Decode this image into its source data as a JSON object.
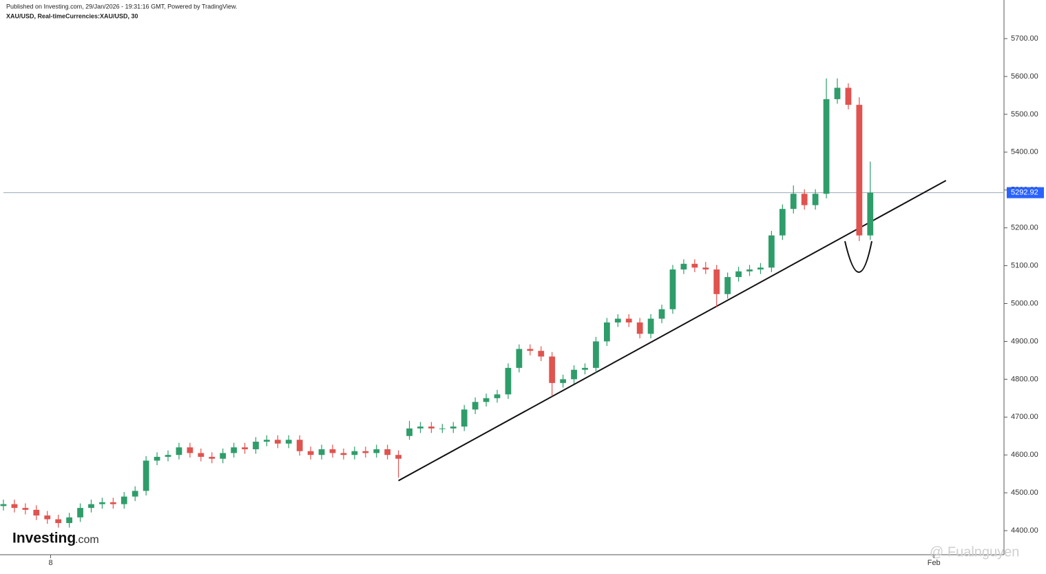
{
  "chart_data": {
    "type": "candlestick",
    "title": "Published on Investing.com, 29/Jan/2026 - 19:31:16 GMT, Powered by TradingView.",
    "subtitle": "XAU/USD, Real-timeCurrencies:XAU/USD, 30",
    "logo": {
      "name": "Investing",
      "suffix": ".com"
    },
    "watermark": "@ Fualnguyen",
    "up_color": "#2e9d6a",
    "down_color": "#e0534f",
    "xlim": [
      0,
      91
    ],
    "xticks": [
      {
        "value": 4.3,
        "label": "8"
      },
      {
        "value": 84.8,
        "label": "Feb"
      }
    ],
    "ylim": [
      4336.4,
      5802
    ],
    "yticks": [
      {
        "value": 4400,
        "label": "4400.00"
      },
      {
        "value": 4500,
        "label": "4500.00"
      },
      {
        "value": 4600,
        "label": "4600.00"
      },
      {
        "value": 4700,
        "label": "4700.00"
      },
      {
        "value": 4800,
        "label": "4800.00"
      },
      {
        "value": 4900,
        "label": "4900.00"
      },
      {
        "value": 5000,
        "label": "5000.00"
      },
      {
        "value": 5100,
        "label": "5100.00"
      },
      {
        "value": 5200,
        "label": "5200.00"
      },
      {
        "value": 5300,
        "label": "5300.00"
      },
      {
        "value": 5400,
        "label": "5400.00"
      },
      {
        "value": 5500,
        "label": "5500.00"
      },
      {
        "value": 5600,
        "label": "5600.00"
      },
      {
        "value": 5700,
        "label": "5700.00"
      }
    ],
    "last_price": {
      "value": 5292.92,
      "label": "5292.92",
      "color": "#2962ff"
    },
    "trendline": {
      "x": [
        36.0,
        85.9
      ],
      "y": [
        4532,
        5325
      ]
    },
    "x": [
      0,
      1,
      2,
      3,
      4,
      5,
      6,
      7,
      8,
      9,
      10,
      11,
      12,
      13,
      14,
      15,
      16,
      17,
      18,
      19,
      20,
      21,
      22,
      23,
      24,
      25,
      26,
      27,
      28,
      29,
      30,
      31,
      32,
      33,
      34,
      35,
      36,
      37,
      38,
      39,
      40,
      41,
      42,
      43,
      44,
      45,
      46,
      47,
      48,
      49,
      50,
      51,
      52,
      53,
      54,
      55,
      56,
      57,
      58,
      59,
      60,
      61,
      62,
      63,
      64,
      65,
      66,
      67,
      68,
      69,
      70,
      71,
      72,
      73,
      74,
      75,
      76,
      77,
      78,
      79
    ],
    "open": [
      4465,
      4470,
      4460,
      4455,
      4440,
      4430,
      4420,
      4435,
      4460,
      4470,
      4475,
      4470,
      4490,
      4505,
      4585,
      4595,
      4600,
      4620,
      4605,
      4595,
      4590,
      4605,
      4620,
      4615,
      4635,
      4640,
      4630,
      4640,
      4610,
      4600,
      4615,
      4605,
      4600,
      4610,
      4605,
      4615,
      4600,
      4650,
      4670,
      4675,
      4670,
      4670,
      4675,
      4720,
      4740,
      4750,
      4760,
      4830,
      4880,
      4875,
      4860,
      4790,
      4800,
      4825,
      4830,
      4900,
      4950,
      4960,
      4950,
      4920,
      4960,
      4985,
      5090,
      5105,
      5095,
      5090,
      5025,
      5070,
      5085,
      5090,
      5095,
      5180,
      5250,
      5290,
      5260,
      5290,
      5540,
      5570,
      5525,
      5180
    ],
    "high": [
      4482,
      4482,
      4472,
      4467,
      4452,
      4442,
      4447,
      4472,
      4482,
      4487,
      4487,
      4502,
      4517,
      4597,
      4607,
      4612,
      4632,
      4632,
      4617,
      4607,
      4617,
      4632,
      4632,
      4647,
      4652,
      4652,
      4652,
      4652,
      4622,
      4627,
      4627,
      4617,
      4622,
      4622,
      4627,
      4627,
      4612,
      4690,
      4687,
      4687,
      4682,
      4687,
      4732,
      4752,
      4762,
      4772,
      4842,
      4892,
      4892,
      4887,
      4872,
      4812,
      4837,
      4842,
      4912,
      4962,
      4972,
      4972,
      4962,
      4972,
      4997,
      5102,
      5117,
      5117,
      5110,
      5102,
      5082,
      5097,
      5102,
      5107,
      5192,
      5262,
      5312,
      5302,
      5302,
      5595,
      5595,
      5582,
      5545,
      5375
    ],
    "low": [
      4453,
      4448,
      4443,
      4428,
      4418,
      4408,
      4408,
      4423,
      4448,
      4458,
      4458,
      4458,
      4478,
      4493,
      4573,
      4583,
      4588,
      4593,
      4583,
      4578,
      4578,
      4593,
      4603,
      4603,
      4623,
      4618,
      4618,
      4598,
      4588,
      4588,
      4593,
      4588,
      4588,
      4593,
      4593,
      4588,
      4540,
      4640,
      4658,
      4658,
      4658,
      4658,
      4663,
      4708,
      4728,
      4738,
      4748,
      4818,
      4863,
      4848,
      4755,
      4778,
      4788,
      4813,
      4818,
      4888,
      4938,
      4938,
      4908,
      4908,
      4948,
      4973,
      5078,
      5083,
      5078,
      4990,
      5013,
      5058,
      5073,
      5078,
      5083,
      5168,
      5238,
      5248,
      5248,
      5278,
      5528,
      5513,
      5165,
      5168
    ],
    "close": [
      4470,
      4460,
      4455,
      4440,
      4430,
      4420,
      4435,
      4460,
      4470,
      4475,
      4470,
      4490,
      4505,
      4585,
      4595,
      4600,
      4620,
      4605,
      4595,
      4590,
      4605,
      4620,
      4615,
      4635,
      4640,
      4630,
      4640,
      4610,
      4600,
      4615,
      4605,
      4600,
      4610,
      4605,
      4615,
      4600,
      4590,
      4670,
      4675,
      4670,
      4670,
      4675,
      4720,
      4740,
      4750,
      4760,
      4830,
      4880,
      4875,
      4860,
      4790,
      4800,
      4825,
      4830,
      4900,
      4950,
      4960,
      4950,
      4920,
      4960,
      4985,
      5090,
      5105,
      5095,
      5090,
      5025,
      5070,
      5085,
      5090,
      5095,
      5180,
      5250,
      5290,
      5260,
      5290,
      5540,
      5570,
      5525,
      5180,
      5293
    ]
  }
}
